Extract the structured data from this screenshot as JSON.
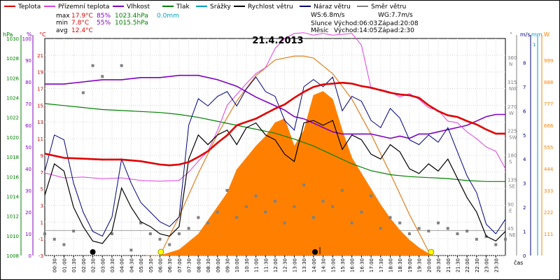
{
  "legend": [
    {
      "label": "Teplota",
      "color": "#e00000"
    },
    {
      "label": "Přízemní teplota",
      "color": "#e040e0"
    },
    {
      "label": "Vlhkost",
      "color": "#8000c0"
    },
    {
      "label": "Tlak",
      "color": "#008000"
    },
    {
      "label": "Srážky",
      "color": "#00a0c0"
    },
    {
      "label": "Rychlost větru",
      "color": "#000000"
    },
    {
      "label": "Náraz větru",
      "color": "#000080"
    },
    {
      "label": "Směr větru",
      "color": "#808080"
    }
  ],
  "stats": {
    "rows": [
      {
        "label": "max",
        "temp": "17.9°C",
        "hum": "85%",
        "press": "1023.4hPa",
        "rain": "0.0mm"
      },
      {
        "label": "min",
        "temp": "7.8°C",
        "hum": "55%",
        "press": "1015.5hPa",
        "rain": ""
      },
      {
        "label": "avg",
        "temp": "12.4°C",
        "hum": "",
        "press": "",
        "rain": ""
      }
    ],
    "ws": "WS:6.8m/s",
    "wg": "WG:7.7m/s",
    "sun_label": "Slunce",
    "sunrise": "Východ:06:03",
    "sunset": "Západ:20:08",
    "moon_label": "Měsíc",
    "moonrise": "Východ:14:05",
    "moonset": "Západ:2:30"
  },
  "chart_data": {
    "type": "line",
    "title": "21.4.2013",
    "xlabel": "čas",
    "x_ticks": [
      "00:30",
      "01:00",
      "01:30",
      "02:00",
      "02:30",
      "03:00",
      "03:30",
      "04:00",
      "04:30",
      "05:00",
      "05:30",
      "06:00",
      "06:30",
      "07:00",
      "07:30",
      "08:00",
      "08:30",
      "09:00",
      "09:30",
      "10:00",
      "10:30",
      "11:00",
      "11:30",
      "12:00",
      "12:30",
      "13:00",
      "13:30",
      "14:00",
      "14:30",
      "15:00",
      "15:30",
      "16:00",
      "16:30",
      "17:00",
      "17:30",
      "18:00",
      "18:30",
      "19:00",
      "19:30",
      "20:00",
      "20:30",
      "21:00",
      "21:30",
      "22:00",
      "22:30",
      "23:00",
      "23:30"
    ],
    "axes": {
      "hpa": {
        "label": "hPa",
        "ticks": [
          "1030",
          "1028",
          "1026",
          "1024",
          "1022",
          "1020",
          "1018",
          "1016",
          "1014",
          "1012",
          "1010",
          "1008"
        ],
        "range": [
          1008,
          1030
        ]
      },
      "pct": {
        "label": "%",
        "ticks": [
          "100",
          "90",
          "80",
          "70",
          "60",
          "50",
          "40",
          "30",
          "20",
          "10",
          "0"
        ],
        "range": [
          0,
          100
        ]
      },
      "temp": {
        "label": "°C",
        "ticks": [
          "21",
          "19",
          "17",
          "15",
          "13",
          "11",
          "9",
          "7",
          "5",
          "3",
          "1",
          "-1",
          "-3"
        ],
        "range": [
          -3,
          23
        ]
      },
      "dir": {
        "label": "°",
        "ticks": [
          {
            "deg": "360",
            "dir": "N"
          },
          {
            "deg": "315",
            "dir": "NW"
          },
          {
            "deg": "270",
            "dir": "W"
          },
          {
            "deg": "225",
            "dir": "SW"
          },
          {
            "deg": "180",
            "dir": "S"
          },
          {
            "deg": "135",
            "dir": "SE"
          },
          {
            "deg": "90",
            "dir": "E"
          },
          {
            "deg": "45",
            "dir": "NE"
          }
        ],
        "range": [
          0,
          360
        ]
      },
      "ms": {
        "label": "m/s",
        "ticks": [
          "8",
          "7",
          "6",
          "5",
          "4",
          "3",
          "2",
          "1",
          "0"
        ],
        "range": [
          0,
          8
        ]
      },
      "mm": {
        "label": "mm",
        "ticks": [
          "1"
        ],
        "range": [
          0,
          1
        ]
      },
      "wm2": {
        "label": "W",
        "ticks": [
          "999",
          "888",
          "777",
          "666",
          "555",
          "444",
          "333",
          "222",
          "111"
        ],
        "range": [
          0,
          1110
        ]
      }
    },
    "series": [
      {
        "name": "Teplota",
        "unit": "°C",
        "color": "#e00000",
        "x": [
          0,
          1,
          2,
          3,
          4,
          5,
          6,
          6.5,
          7,
          7.5,
          8,
          8.5,
          9,
          9.5,
          10,
          10.5,
          11,
          11.5,
          12,
          12.5,
          13,
          13.5,
          14,
          14.5,
          15,
          15.5,
          16,
          16.5,
          17,
          17.5,
          18,
          18.5,
          19,
          19.5,
          20,
          20.5,
          21,
          21.5,
          22,
          22.5,
          23,
          23.5,
          24
        ],
        "values": [
          9.2,
          8.7,
          8.6,
          8.5,
          8.5,
          8.3,
          7.9,
          7.8,
          7.9,
          8.2,
          8.8,
          9.5,
          10.5,
          11.4,
          12.6,
          13.0,
          13.4,
          14.0,
          14.6,
          15.1,
          15.9,
          16.6,
          17.2,
          17.5,
          17.6,
          17.7,
          17.6,
          17.3,
          17.1,
          16.8,
          16.5,
          16.3,
          16.2,
          15.9,
          15.0,
          14.3,
          13.8,
          13.6,
          13.1,
          12.7,
          12.1,
          11.6,
          11.6
        ]
      },
      {
        "name": "Přízemní teplota",
        "unit": "°C",
        "color": "#e040e0",
        "x": [
          0,
          1,
          2,
          3,
          4,
          5,
          6,
          7,
          7.5,
          8,
          8.5,
          9,
          9.5,
          10,
          10.5,
          11,
          11.5,
          12,
          12.5,
          13,
          13.5,
          14,
          14.5,
          15,
          15.5,
          16,
          16.5,
          17,
          17.5,
          18,
          18.5,
          19,
          19.5,
          20,
          20.5,
          21,
          21.5,
          22,
          22.5,
          23,
          23.5,
          24
        ],
        "values": [
          6.9,
          6.3,
          6.4,
          6.2,
          6.3,
          6.0,
          5.9,
          6.0,
          7.0,
          8.3,
          9.5,
          12.0,
          15.0,
          16.3,
          17.6,
          18.8,
          19.5,
          21.8,
          23.0,
          23.6,
          23.7,
          23.4,
          23.6,
          23.4,
          23.5,
          23.6,
          22.2,
          17.0,
          16.9,
          16.6,
          16.0,
          16.4,
          15.7,
          14.7,
          14.4,
          13.1,
          12.9,
          11.8,
          11.0,
          10.0,
          9.5,
          7.4
        ]
      },
      {
        "name": "Vlhkost",
        "unit": "%",
        "color": "#8000c0",
        "x": [
          0,
          1,
          2,
          3,
          4,
          5,
          6,
          7,
          8,
          9,
          10,
          11,
          12,
          12.5,
          13,
          13.5,
          14,
          14.5,
          15,
          15.5,
          16,
          16.5,
          17,
          17.5,
          18,
          18.5,
          19,
          19.5,
          20,
          20.5,
          21,
          21.5,
          22,
          22.5,
          23,
          23.5,
          24
        ],
        "values": [
          79,
          79,
          80,
          81,
          81,
          82,
          82,
          83,
          83,
          81,
          78,
          73,
          69,
          67,
          64,
          63,
          61,
          59,
          57,
          56,
          56,
          56,
          56,
          55,
          54,
          55,
          54,
          56,
          56,
          57,
          58,
          59,
          60,
          62,
          64,
          65,
          65
        ]
      },
      {
        "name": "Tlak",
        "unit": "hPa",
        "color": "#008000",
        "x": [
          0,
          1,
          2,
          3,
          4,
          5,
          6,
          7,
          8,
          9,
          10,
          11,
          12,
          13,
          14,
          15,
          16,
          17,
          18,
          19,
          20,
          21,
          22,
          23,
          24
        ],
        "values": [
          1023.4,
          1023.2,
          1023.0,
          1022.8,
          1022.7,
          1022.6,
          1022.5,
          1022.3,
          1022.0,
          1021.6,
          1021.2,
          1020.8,
          1020.4,
          1019.8,
          1019.1,
          1018.2,
          1017.3,
          1016.6,
          1016.2,
          1016.0,
          1015.9,
          1015.8,
          1015.6,
          1015.5,
          1015.5
        ]
      },
      {
        "name": "Rychlost větru",
        "unit": "m/s",
        "color": "#000000",
        "x": [
          0,
          0.5,
          1,
          1.5,
          2,
          2.5,
          3,
          3.5,
          4,
          4.5,
          5,
          5.5,
          6,
          6.5,
          7,
          7.5,
          8,
          8.5,
          9,
          9.5,
          10,
          10.5,
          11,
          11.5,
          12,
          12.5,
          13,
          13.5,
          14,
          14.5,
          15,
          15.5,
          16,
          16.5,
          17,
          17.5,
          18,
          18.5,
          19,
          19.5,
          20,
          20.5,
          21,
          21.5,
          22,
          22.5,
          23,
          23.5,
          24
        ],
        "values": [
          2.5,
          3.8,
          3.5,
          2.0,
          1.2,
          0.6,
          0.5,
          1.0,
          2.8,
          2.0,
          1.4,
          1.2,
          0.9,
          0.8,
          1.2,
          4.0,
          5.0,
          4.6,
          5.0,
          5.2,
          4.6,
          5.3,
          5.5,
          5.0,
          4.8,
          4.2,
          3.9,
          5.5,
          5.6,
          5.4,
          5.6,
          4.4,
          5.0,
          4.8,
          4.2,
          4.0,
          4.6,
          4.3,
          3.6,
          3.4,
          3.8,
          3.5,
          4.0,
          3.2,
          2.4,
          1.8,
          0.8,
          0.6,
          1.0
        ]
      },
      {
        "name": "Náraz větru",
        "unit": "m/s",
        "color": "#000080",
        "x": [
          0,
          0.5,
          1,
          1.5,
          2,
          2.5,
          3,
          3.5,
          4,
          4.5,
          5,
          5.5,
          6,
          6.5,
          7,
          7.5,
          8,
          8.5,
          9,
          9.5,
          10,
          10.5,
          11,
          11.5,
          12,
          12.5,
          13,
          13.5,
          14,
          14.5,
          15,
          15.5,
          16,
          16.5,
          17,
          17.5,
          18,
          18.5,
          19,
          19.5,
          20,
          20.5,
          21,
          21.5,
          22,
          22.5,
          23,
          23.5,
          24
        ],
        "values": [
          3.5,
          5.0,
          4.8,
          3.0,
          1.8,
          1.0,
          0.8,
          1.6,
          4.0,
          3.0,
          2.2,
          1.8,
          1.4,
          1.2,
          1.6,
          5.4,
          6.5,
          6.2,
          6.6,
          6.8,
          6.2,
          6.9,
          7.4,
          6.8,
          6.6,
          5.6,
          5.2,
          7.0,
          7.3,
          7.0,
          7.4,
          6.0,
          6.6,
          6.4,
          5.6,
          5.3,
          6.1,
          5.7,
          4.8,
          4.6,
          5.0,
          4.7,
          5.3,
          4.3,
          3.3,
          2.6,
          1.3,
          0.9,
          1.5
        ]
      },
      {
        "name": "Sluneční záření",
        "unit": "W/m²",
        "color": "#ff8000",
        "x": [
          5.3,
          6,
          7,
          8,
          8.5,
          9,
          9.5,
          10,
          10.5,
          11,
          11.5,
          12,
          12.5,
          13,
          13.5,
          14,
          14.5,
          15,
          15.5,
          16,
          16.5,
          17,
          17.5,
          18,
          18.5,
          19,
          19.5,
          20,
          20.3
        ],
        "values": [
          0,
          0,
          30,
          110,
          180,
          250,
          320,
          440,
          500,
          560,
          610,
          680,
          700,
          560,
          640,
          820,
          840,
          800,
          640,
          500,
          420,
          340,
          260,
          190,
          130,
          80,
          40,
          10,
          0
        ]
      },
      {
        "name": "Teoretické záření",
        "unit": "W/m²",
        "color": "#ff8000",
        "x": [
          6,
          7,
          8,
          9,
          10,
          11,
          12,
          13,
          13.5,
          14,
          15,
          16,
          17,
          18,
          19,
          20,
          20.1
        ],
        "values": [
          0,
          200,
          420,
          620,
          790,
          920,
          1000,
          1020,
          1020,
          1010,
          930,
          800,
          620,
          420,
          210,
          20,
          0
        ]
      },
      {
        "name": "Směr větru",
        "unit": "°",
        "color": "#808080",
        "x": [
          0,
          0.5,
          1,
          1.5,
          2,
          2.5,
          3,
          3.5,
          4,
          4.5,
          5,
          5.5,
          6,
          6.5,
          7,
          7.5,
          8,
          8.5,
          9,
          9.5,
          10,
          10.5,
          11,
          11.5,
          12,
          12.5,
          13,
          13.5,
          14,
          14.5,
          15,
          15.5,
          16,
          16.5,
          17,
          17.5,
          18,
          18.5,
          19,
          19.5,
          20,
          20.5,
          21,
          21.5,
          22,
          22.5,
          23,
          23.5,
          24
        ],
        "values": [
          40,
          30,
          20,
          45,
          300,
          350,
          330,
          40,
          350,
          10,
          60,
          40,
          30,
          20,
          40,
          50,
          70,
          60,
          80,
          120,
          70,
          90,
          110,
          80,
          100,
          60,
          90,
          130,
          70,
          100,
          90,
          120,
          60,
          80,
          110,
          50,
          70,
          60,
          40,
          50,
          45,
          60,
          50,
          40,
          45,
          30,
          35,
          20,
          30
        ]
      }
    ],
    "markers": {
      "moonset_hour": 2.5,
      "sunrise_hour": 6.05,
      "moonrise_hour": 14.08,
      "sunset_hour": 20.13
    }
  }
}
